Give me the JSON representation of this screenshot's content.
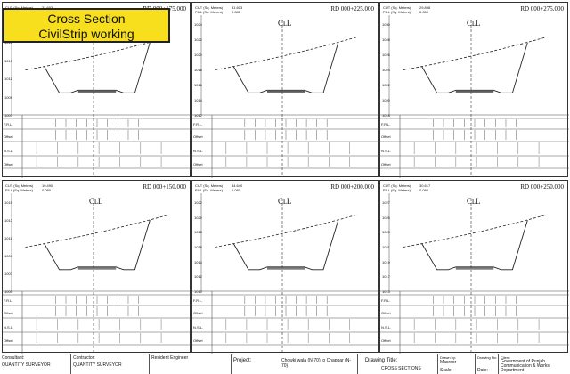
{
  "banner": {
    "line1": "Cross Section",
    "line2": "CivilStrip working"
  },
  "panels": [
    {
      "rd": "RD 000+175.000",
      "cut": "31.603",
      "fill": "0.080",
      "cl": "CʟL",
      "yticks": [
        "1017",
        "1015",
        "1013",
        "1011",
        "1009",
        "1007"
      ]
    },
    {
      "rd": "RD 000+225.000",
      "cut": "31.603",
      "fill": "0.080",
      "cl": "CʟL",
      "yticks": [
        "1024",
        "1022",
        "1020",
        "1018",
        "1016",
        "1014",
        "1012"
      ]
    },
    {
      "rd": "RD 000+275.000",
      "cut": "29.898",
      "fill": "0.080",
      "cl": "CʟL",
      "yticks": [
        "1030",
        "1028",
        "1026",
        "1024",
        "1022",
        "1020",
        "1018"
      ]
    },
    {
      "rd": "RD 000+150.000",
      "cut": "10.490",
      "fill": "0.080",
      "cl": "CʟL",
      "yticks": [
        "1015",
        "1013",
        "1011",
        "1009",
        "1007",
        "1005"
      ]
    },
    {
      "rd": "RD 000+200.000",
      "cut": "34.640",
      "fill": "0.080",
      "cl": "CʟL",
      "yticks": [
        "1022",
        "1020",
        "1018",
        "1016",
        "1014",
        "1012",
        "1010"
      ]
    },
    {
      "rd": "RD 000+250.000",
      "cut": "30.617",
      "fill": "0.080",
      "cl": "CʟL",
      "yticks": [
        "1027",
        "1025",
        "1023",
        "1021",
        "1019",
        "1017",
        "1015"
      ]
    }
  ],
  "labels": {
    "cut": "CUT  (Sq. Meters)",
    "fill": "FILL (Sq. Meters)",
    "frl": "F.R.L.",
    "offset": "Offset",
    "nsl": "N.S.L."
  },
  "titleblock": {
    "consultant_label": "Consultant:",
    "consultant_value": "QUANTITY SURVEYOR",
    "contractor_label": "Contractor:",
    "contractor_value": "QUANTITY SURVEYOR",
    "engineer_label": "Resident Engineer",
    "project_label": "Project:",
    "project_value": "Chowki wala (N-70) to Chappar (N-70)",
    "drawing_title_label": "Drawing Title:",
    "drawing_title_value": "CROSS  SECTIONS",
    "drawn_by_label": "Drawn by:",
    "drawn_by_value": "Masroor",
    "scale_label": "Scale:",
    "drawing_no_label": "Drawing No:",
    "date_label": "Date:",
    "client_label": "Client:",
    "client_value": "Government of Punjab Communication & Works Department"
  }
}
